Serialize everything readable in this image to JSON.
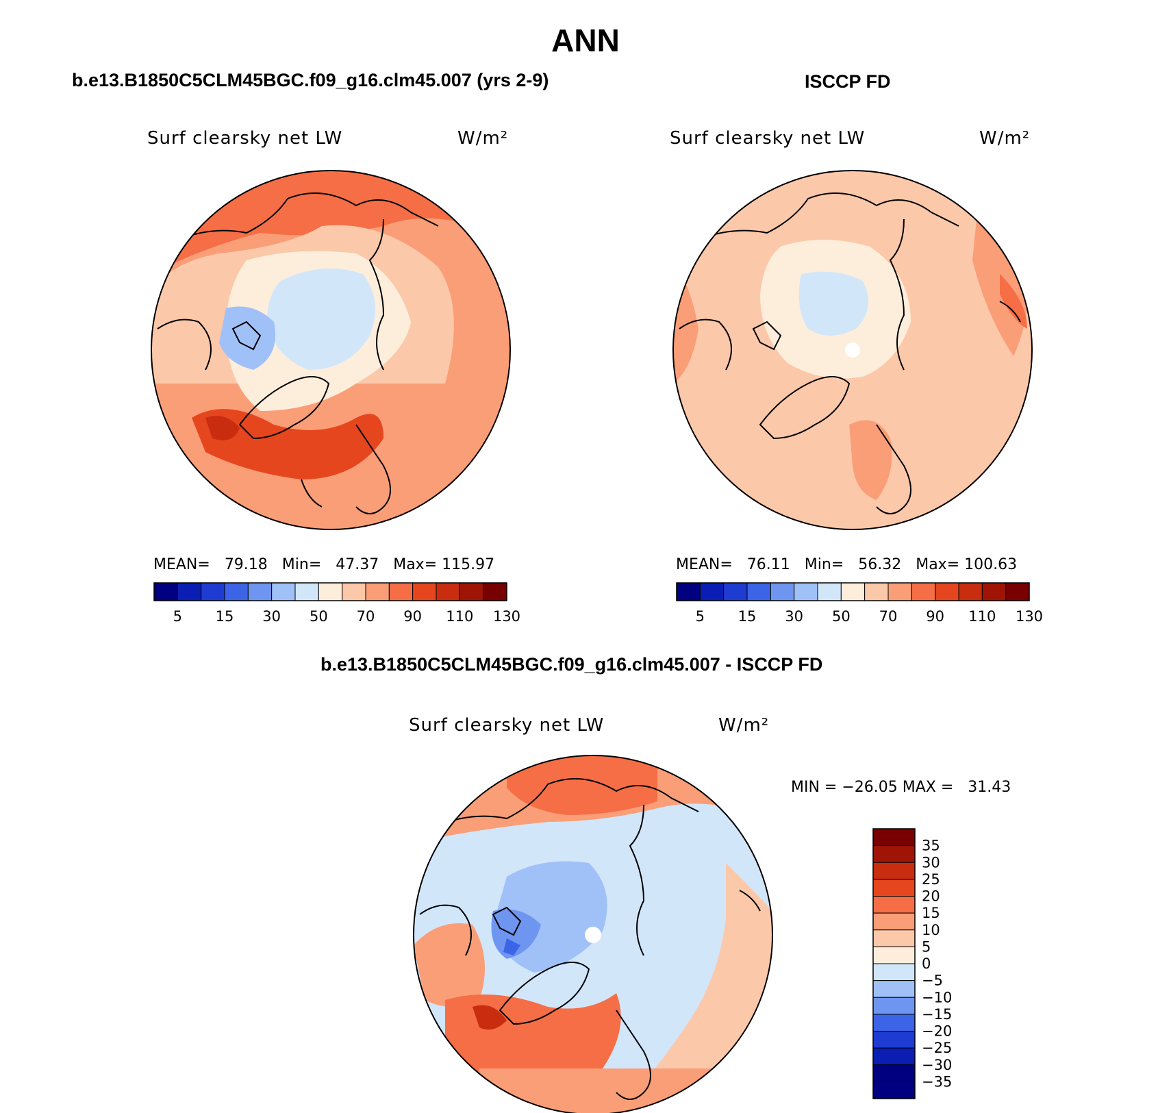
{
  "figure": {
    "title": "ANN"
  },
  "panels": [
    {
      "title": "b.e13.B1850C5CLM45BGC.f09_g16.clm45.007 (yrs 2-9)",
      "variable": "Surf clearsky net LW",
      "units": "W/m²",
      "stats": {
        "mean_label": "MEAN=",
        "mean": "79.18",
        "min_label": "Min=",
        "min": "47.37",
        "max_label": "Max=",
        "max": "115.97"
      }
    },
    {
      "title": "ISCCP FD",
      "variable": "Surf clearsky net LW",
      "units": "W/m²",
      "stats": {
        "mean_label": "MEAN=",
        "mean": "76.11",
        "min_label": "Min=",
        "min": "56.32",
        "max_label": "Max=",
        "max": "100.63"
      }
    },
    {
      "title": "b.e13.B1850C5CLM45BGC.f09_g16.clm45.007 - ISCCP FD",
      "variable": "Surf clearsky net LW",
      "units": "W/m²",
      "minmax": "MIN = −26.05 MAX =   31.43"
    }
  ],
  "colorbar_abs": {
    "colors": [
      "#000080",
      "#0a1eb4",
      "#1e3cd2",
      "#3c64e6",
      "#6e96f0",
      "#a0c0f8",
      "#d2e6fa",
      "#fdeedc",
      "#fcc8aa",
      "#fa9e78",
      "#f56e46",
      "#e6461e",
      "#c82d0f",
      "#a01405",
      "#780000"
    ],
    "labels": [
      "5",
      "15",
      "30",
      "50",
      "70",
      "90",
      "110",
      "130"
    ]
  },
  "colorbar_diff": {
    "colors": [
      "#000080",
      "#0a1eb4",
      "#1e3cd2",
      "#3c64e6",
      "#6e96f0",
      "#a0c0f8",
      "#d2e6fa",
      "#fdeedc",
      "#fcc8aa",
      "#fa9e78",
      "#f56e46",
      "#e6461e",
      "#c82d0f",
      "#a01405",
      "#780000"
    ],
    "labels": [
      "35",
      "30",
      "25",
      "20",
      "15",
      "10",
      "5",
      "0",
      "−5",
      "−10",
      "−15",
      "−20",
      "−25",
      "−30",
      "−35"
    ]
  }
}
